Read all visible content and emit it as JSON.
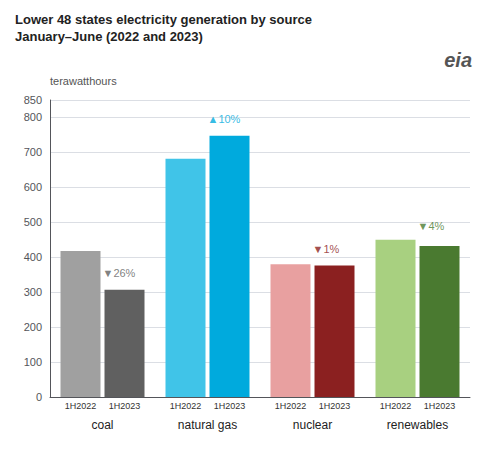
{
  "chart_data": {
    "type": "bar",
    "title": "Lower 48 states electricity generation by source",
    "subtitle": "January–June (2022 and 2023)",
    "ylabel": "terawatthours",
    "logo": "eia",
    "categories": [
      "coal",
      "natural gas",
      "nuclear",
      "renewables"
    ],
    "series": [
      {
        "name": "1H2022",
        "values": [
          418,
          682,
          380,
          450
        ],
        "colors": [
          "#a0a0a0",
          "#40c4e8",
          "#e8a0a0",
          "#a8d080"
        ]
      },
      {
        "name": "1H2023",
        "values": [
          307,
          748,
          376,
          432
        ],
        "colors": [
          "#606060",
          "#00aadd",
          "#8b2020",
          "#4a7a30"
        ]
      }
    ],
    "annotations": [
      {
        "category": "coal",
        "text": "▼26%",
        "y": 355,
        "color": "#606060"
      },
      {
        "category": "natural gas",
        "text": "▲10%",
        "y": 795,
        "color": "#00aadd"
      },
      {
        "category": "nuclear",
        "text": "▼1%",
        "y": 425,
        "color": "#8b2020"
      },
      {
        "category": "renewables",
        "text": "▼4%",
        "y": 490,
        "color": "#4a7a30"
      }
    ],
    "ylim": [
      0,
      850
    ],
    "yticks": [
      0,
      100,
      200,
      300,
      400,
      500,
      600,
      700,
      800
    ],
    "grid": true
  }
}
